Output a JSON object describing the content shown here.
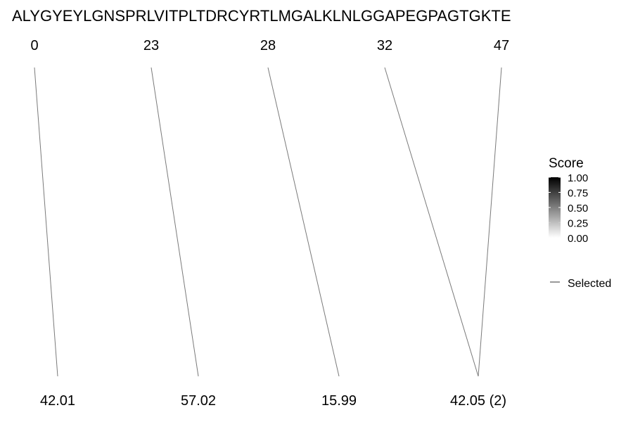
{
  "sequence": "ALYGYEYLGNSPRLVITPLTDRCYRTLMGALKLNLGGAPEGPAGTGKTE",
  "positions": [
    "0",
    "23",
    "28",
    "32",
    "47"
  ],
  "masses": [
    "42.01",
    "57.02",
    "15.99",
    "42.05 (2)"
  ],
  "links": [
    {
      "position": "0",
      "mass": "42.01"
    },
    {
      "position": "23",
      "mass": "57.02"
    },
    {
      "position": "28",
      "mass": "15.99"
    },
    {
      "position": "32",
      "mass": "42.05 (2)"
    },
    {
      "position": "47",
      "mass": "42.05 (2)"
    }
  ],
  "legend": {
    "title": "Score",
    "ticks": [
      "1.00",
      "0.75",
      "0.50",
      "0.25",
      "0.00"
    ],
    "gradient_colors": [
      "#000000",
      "#ffffff"
    ],
    "key_label": "Selected"
  },
  "colors": {
    "line": "#7a7a7a"
  }
}
